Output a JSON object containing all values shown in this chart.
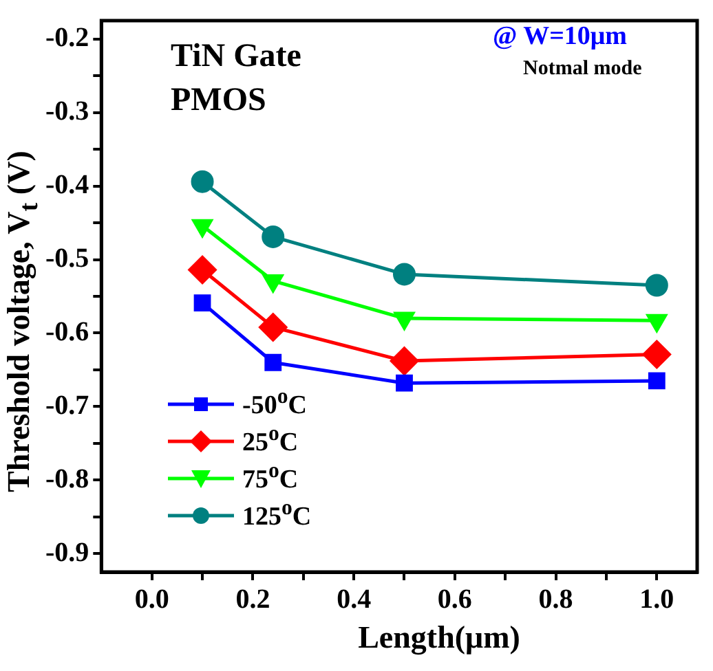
{
  "chart_data": {
    "type": "line",
    "xlabel": "Length(μm)",
    "ylabel": "Threshold voltage, V$_{t}$ (V)",
    "annotations": [
      "TiN Gate",
      "PMOS",
      "@ W=10μm",
      "Notmal mode"
    ],
    "x": [
      0.1,
      0.24,
      0.5,
      1.0
    ],
    "series": [
      {
        "name": "-50$^{o}$C",
        "color": "#0000ff",
        "marker": "square",
        "values": [
          -0.559,
          -0.64,
          -0.668,
          -0.665
        ]
      },
      {
        "name": "25$^{o}$C",
        "color": "#ff0000",
        "marker": "diamond",
        "values": [
          -0.514,
          -0.592,
          -0.638,
          -0.629
        ]
      },
      {
        "name": "75$^{o}$C",
        "color": "#00ff00",
        "marker": "triangle",
        "values": [
          -0.454,
          -0.529,
          -0.58,
          -0.583
        ]
      },
      {
        "name": "125$^{o}$C",
        "color": "#008080",
        "marker": "circle",
        "values": [
          -0.394,
          -0.469,
          -0.52,
          -0.535
        ]
      }
    ],
    "xlim": [
      -0.1,
      1.08
    ],
    "xticks": [
      {
        "value": 0,
        "label": "0.0"
      },
      {
        "value": 0.1,
        "label": null
      },
      {
        "value": 0.2,
        "label": "0.2"
      },
      {
        "value": 0.3,
        "label": null
      },
      {
        "value": 0.4,
        "label": "0.4"
      },
      {
        "value": 0.5,
        "label": null
      },
      {
        "value": 0.6,
        "label": "0.6"
      },
      {
        "value": 0.7,
        "label": null
      },
      {
        "value": 0.8,
        "label": "0.8"
      },
      {
        "value": 0.9,
        "label": null
      },
      {
        "value": 1,
        "label": "1.0"
      }
    ],
    "ylim": [
      -0.925,
      -0.175
    ],
    "yticks": [
      -0.9,
      {
        "value": -0.85,
        "label": null
      },
      -0.8,
      {
        "value": -0.75,
        "label": null
      },
      -0.7,
      {
        "value": -0.65,
        "label": null
      },
      -0.6,
      {
        "value": -0.55,
        "label": null
      },
      -0.5,
      {
        "value": -0.45,
        "label": null
      },
      -0.4,
      {
        "value": -0.35,
        "label": null
      },
      -0.3,
      {
        "value": -0.25,
        "label": null
      },
      -0.2
    ],
    "grid": false,
    "legend": "bottom left",
    "line_style": "solid"
  }
}
